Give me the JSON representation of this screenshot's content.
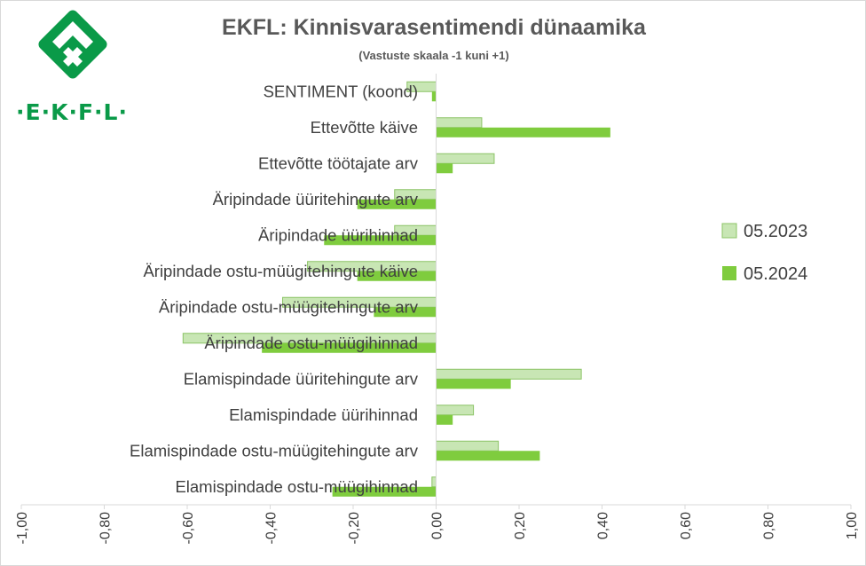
{
  "logo": {
    "text": "·E·K·F·L·",
    "color": "#0a9a48"
  },
  "chart_data": {
    "type": "bar",
    "orientation": "horizontal",
    "title": "EKFL: Kinnisvarasentimendi dünaamika",
    "subtitle": "(Vastuste skaala -1 kuni +1)",
    "categories": [
      "SENTIMENT (koond)",
      "Ettevõtte käive",
      "Ettevõtte töötajate arv",
      "Äripindade üüritehingute arv",
      "Äripindade üürihinnad",
      "Äripindade ostu-müügitehingute käive",
      "Äripindade ostu-müügitehingute arv",
      "Äripindade ostu-müügihinnad",
      "Elamispindade üüritehingute arv",
      "Elamispindade üürihinnad",
      "Elamispindade ostu-müügitehingute arv",
      "Elamispindade ostu-müügihinnad"
    ],
    "series": [
      {
        "name": "05.2023",
        "color": "#c8e6b4",
        "stroke": "#8cc466",
        "values": [
          -0.07,
          0.11,
          0.14,
          -0.1,
          -0.1,
          -0.31,
          -0.37,
          -0.61,
          0.35,
          0.09,
          0.15,
          -0.01
        ]
      },
      {
        "name": "05.2024",
        "color": "#7fcc3e",
        "stroke": "#7fcc3e",
        "values": [
          -0.01,
          0.42,
          0.04,
          -0.19,
          -0.27,
          -0.19,
          -0.15,
          -0.42,
          0.18,
          0.04,
          0.25,
          -0.25
        ]
      }
    ],
    "xlim": [
      -1,
      1
    ],
    "xticks": [
      "-1,00",
      "-0,80",
      "-0,60",
      "-0,40",
      "-0,20",
      "0,00",
      "0,20",
      "0,40",
      "0,60",
      "0,80",
      "1,00"
    ],
    "grid": false,
    "legend_position": "right"
  }
}
